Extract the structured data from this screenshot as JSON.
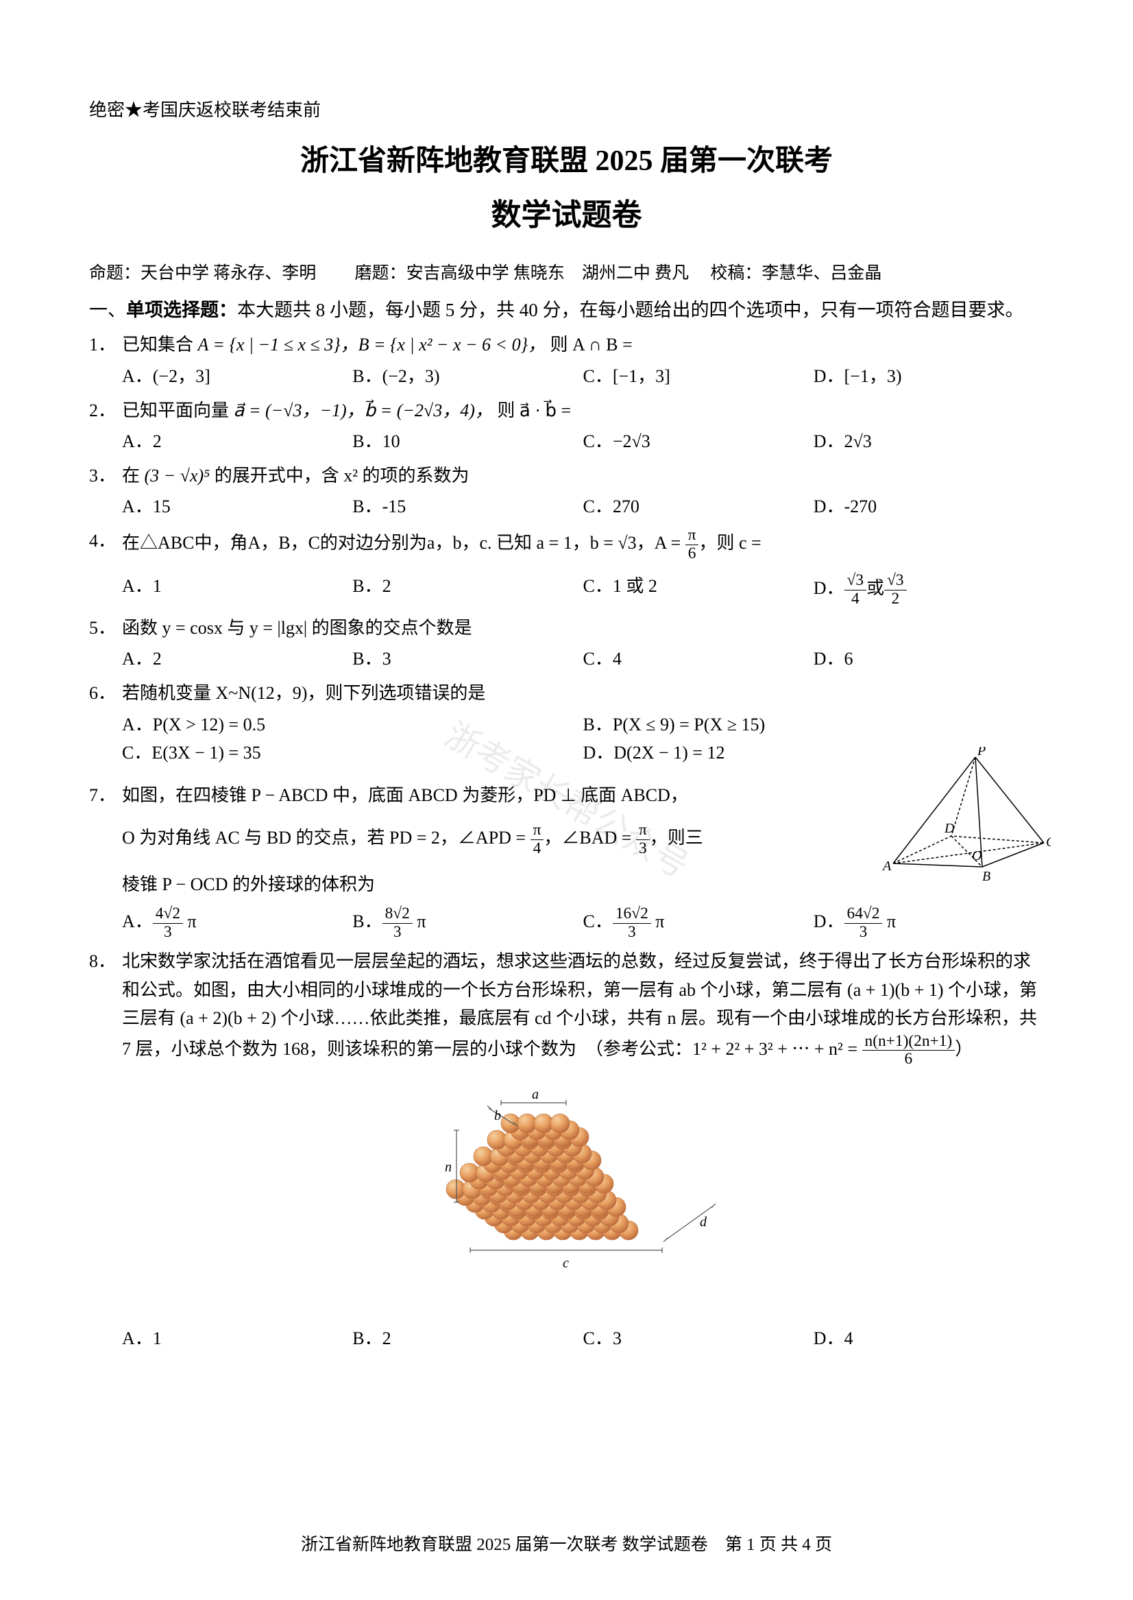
{
  "secrecy": "绝密★考国庆返校联考结束前",
  "title1": "浙江省新阵地教育联盟 2025 届第一次联考",
  "title2": "数学试题卷",
  "credits_prefix": "命题：",
  "credits_authors": "天台中学 蒋永存、李明",
  "credits_moti_prefix": "磨题：",
  "credits_moti": "安吉高级中学 焦晓东　湖州二中 费凡",
  "credits_check_prefix": "校稿：",
  "credits_check": "李慧华、吕金晶",
  "section1_label": "一、",
  "section1_title": "单项选择题：",
  "section1_desc": "本大题共 8 小题，每小题 5 分，共 40 分，在每小题给出的四个选项中，只有一项符合题目要求。",
  "questions": {
    "q1": {
      "num": "1．",
      "stem_a": "已知集合",
      "stem_b": "A = {x | −1 ≤ x ≤ 3}，B = {x | x² − x − 6 < 0}，",
      "stem_c": "则 A ∩ B =",
      "opts": [
        "A．(−2，3]",
        "B．(−2，3)",
        "C．[−1，3]",
        "D．[−1，3)"
      ]
    },
    "q2": {
      "num": "2．",
      "stem_a": "已知平面向量",
      "stem_b": "a⃗ = (−√3，−1)，b⃗ = (−2√3，4)，",
      "stem_c": "则 a⃗ · b⃗ =",
      "opts": [
        "A．2",
        "B．10",
        "C．−2√3",
        "D．2√3"
      ]
    },
    "q3": {
      "num": "3．",
      "stem_a": "在",
      "stem_b": "(3 − √x)⁵",
      "stem_c": "的展开式中，含 x² 的项的系数为",
      "opts": [
        "A．15",
        "B．-15",
        "C．270",
        "D．-270"
      ]
    },
    "q4": {
      "num": "4．",
      "stem_a": "在△ABC中，角A，B，C的对边分别为a，b，c. 已知 a = 1，b = √3，A = ",
      "stem_b": "，则 c =",
      "frac_a": {
        "num": "π",
        "den": "6"
      },
      "opts": [
        "A．1",
        "B．2",
        "C．1 或 2"
      ],
      "opt_d_prefix": "D．",
      "opt_d_frac1": {
        "num": "√3",
        "den": "4"
      },
      "opt_d_or": "或",
      "opt_d_frac2": {
        "num": "√3",
        "den": "2"
      }
    },
    "q5": {
      "num": "5．",
      "stem": "函数 y = cosx 与 y = |lgx| 的图象的交点个数是",
      "opts": [
        "A．2",
        "B．3",
        "C．4",
        "D．6"
      ]
    },
    "q6": {
      "num": "6．",
      "stem": "若随机变量 X~N(12，9)，则下列选项错误的是",
      "opts": [
        "A．P(X > 12) = 0.5",
        "B．P(X ≤ 9) = P(X ≥ 15)",
        "C．E(3X − 1) = 35",
        "D．D(2X − 1) = 12"
      ]
    },
    "q7": {
      "num": "7．",
      "line1_a": "如图，在四棱锥 P − ABCD 中，底面 ABCD 为菱形，PD ⊥ 底面 ABCD，",
      "line2_a": "O 为对角线 AC 与 BD 的交点，若 PD = 2，∠APD = ",
      "line2_b": "，∠BAD = ",
      "line2_c": "，则三",
      "frac_apd": {
        "num": "π",
        "den": "4"
      },
      "frac_bad": {
        "num": "π",
        "den": "3"
      },
      "line3": "棱锥 P − OCD 的外接球的体积为",
      "opt_prefix": [
        "A．",
        "B．",
        "C．",
        "D．"
      ],
      "opt_fracs": [
        {
          "num": "4√2",
          "den": "3"
        },
        {
          "num": "8√2",
          "den": "3"
        },
        {
          "num": "16√2",
          "den": "3"
        },
        {
          "num": "64√2",
          "den": "3"
        }
      ],
      "opt_suffix": "π",
      "figure": {
        "labels": [
          "P",
          "A",
          "B",
          "C",
          "D",
          "O"
        ],
        "stroke": "#000000"
      }
    },
    "q8": {
      "num": "8．",
      "stem": "北宋数学家沈括在酒馆看见一层层垒起的酒坛，想求这些酒坛的总数，经过反复尝试，终于得出了长方台形垛积的求和公式。如图，由大小相同的小球堆成的一个长方台形垛积，第一层有 ab 个小球，第二层有 (a + 1)(b + 1) 个小球，第三层有 (a + 2)(b + 2) 个小球……依此类推，最底层有 cd 个小球，共有 n 层。现有一个由小球堆成的长方台形垛积，共 7 层，小球总个数为 168，则该垛积的第一层的小球个数为　（参考公式：1² + 2² + 3² + ⋯ + n² = ",
      "formula_frac": {
        "num": "n(n+1)(2n+1)",
        "den": "6"
      },
      "stem_end": "）",
      "opts": [
        "A．1",
        "B．2",
        "C．3",
        "D．4"
      ],
      "figure": {
        "labels": {
          "a": "a",
          "b": "b",
          "c": "c",
          "d": "d",
          "n": "n"
        },
        "ball_color": "#e8a060",
        "ball_highlight": "#f5d0a0",
        "ball_shadow": "#c07040",
        "stroke": "#555555"
      }
    }
  },
  "watermark": "浙考家长帮公众号",
  "footer": "浙江省新阵地教育联盟 2025 届第一次联考 数学试题卷　第 1 页 共 4 页"
}
